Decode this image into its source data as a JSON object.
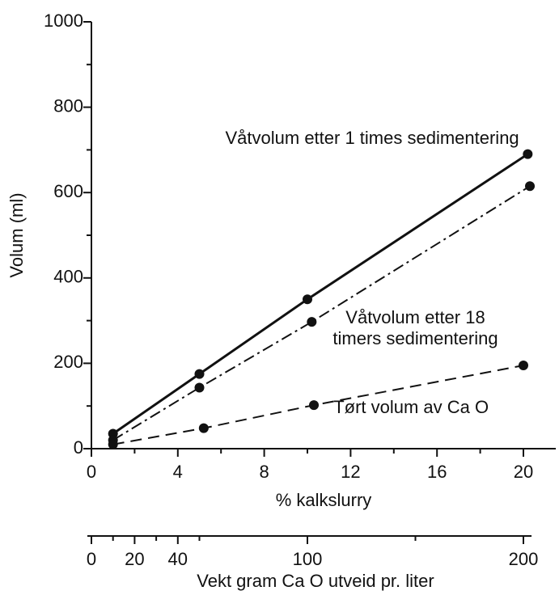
{
  "chart_data": {
    "type": "line",
    "xlabel": "% kalkslurry",
    "ylabel": "Volum (ml)",
    "xlim": [
      0,
      21.5
    ],
    "ylim": [
      0,
      1000
    ],
    "xticks": [
      0,
      4,
      8,
      12,
      16,
      20
    ],
    "xminor_ticks": [
      2,
      6,
      10,
      14,
      18
    ],
    "yticks": [
      0,
      200,
      400,
      600,
      800,
      1000
    ],
    "yminor_ticks": [
      100,
      300,
      500,
      700,
      900
    ],
    "series": [
      {
        "name": "Våtvolum etter 1 times sedimentering",
        "color": "#111111",
        "dash": "solid",
        "x": [
          1,
          5,
          10,
          20.2
        ],
        "values": [
          35,
          175,
          350,
          690
        ]
      },
      {
        "name": "Våtvolum etter 18 timers sedimentering",
        "color": "#111111",
        "dash": "dashdot",
        "x": [
          1,
          5,
          10.2,
          20.3
        ],
        "values": [
          20,
          143,
          297,
          615
        ]
      },
      {
        "name": "Tørt volum av Ca O",
        "color": "#111111",
        "dash": "dashed",
        "x": [
          1,
          5.2,
          10.3,
          20
        ],
        "values": [
          10,
          48,
          102,
          195
        ]
      }
    ],
    "annotations": [
      {
        "lines": [
          "Våtvolum etter 1 times sedimentering"
        ],
        "x": 13,
        "y": 725
      },
      {
        "lines": [
          "Våtvolum etter 18",
          "timers sedimentering"
        ],
        "x": 15,
        "y": 305
      },
      {
        "lines": [
          "Tørt volum av Ca O"
        ],
        "x": 14.8,
        "y": 95
      }
    ],
    "x2": {
      "label": "Vekt gram Ca O utveid pr. liter",
      "lim": [
        0,
        215
      ],
      "ticks": [
        0,
        20,
        40,
        100,
        200
      ],
      "minor_ticks": [
        10,
        30,
        50,
        150
      ]
    }
  }
}
